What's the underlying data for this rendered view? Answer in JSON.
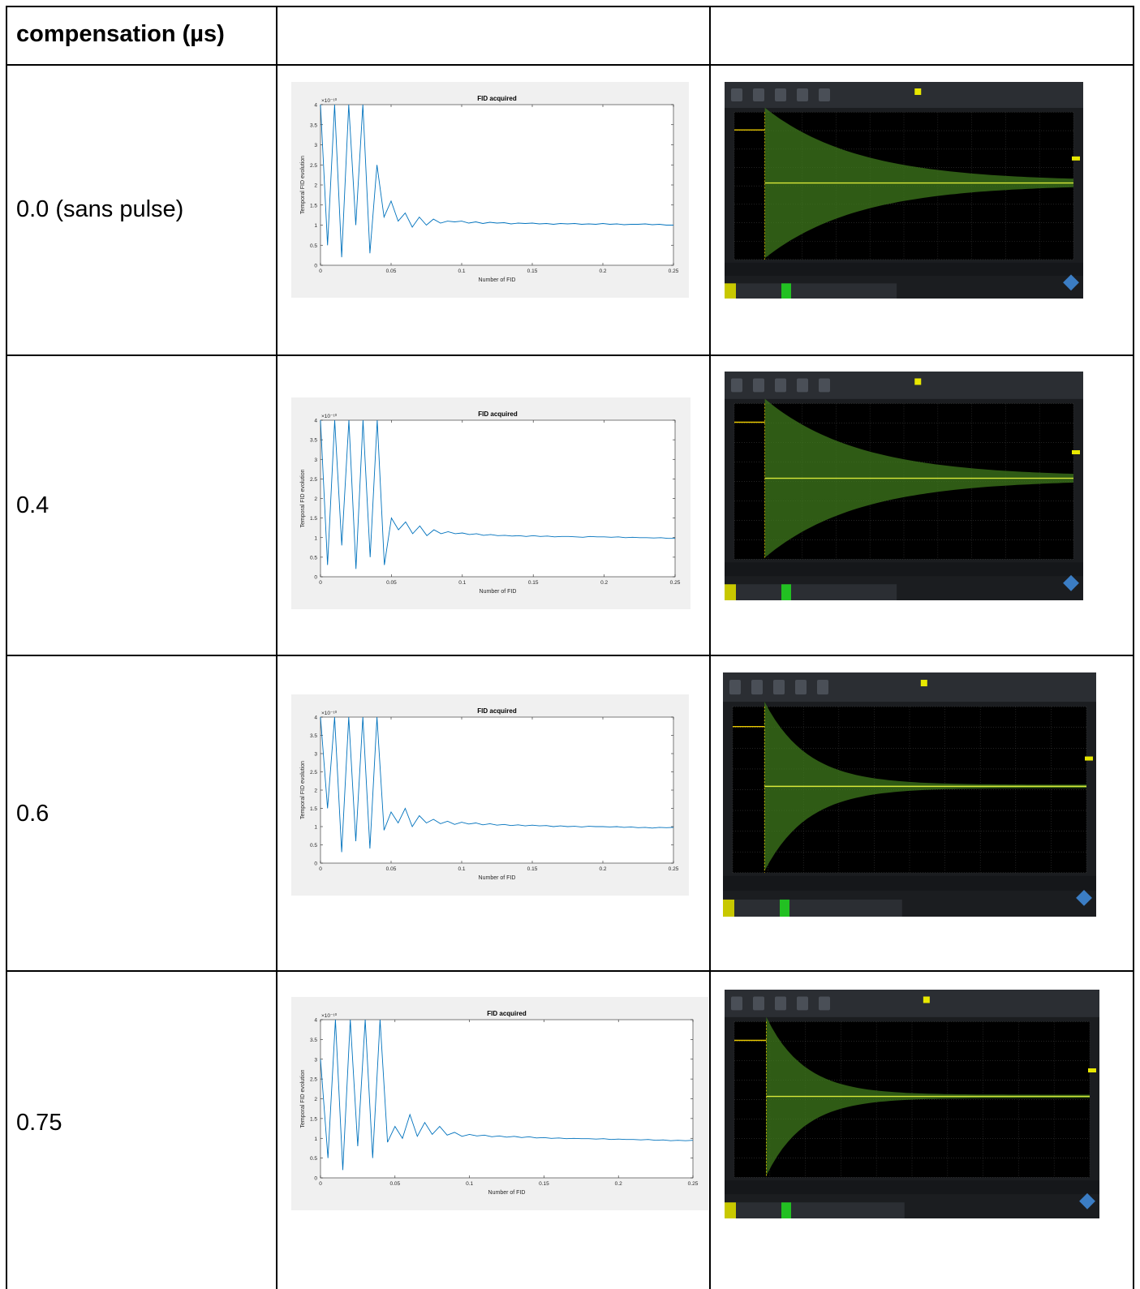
{
  "table": {
    "header_label": "compensation (µs)",
    "rows": [
      {
        "label": "0.0 (sans pulse)",
        "plot": {
          "type": "line",
          "title": "FID acquired",
          "xlabel": "Number of FID",
          "ylabel": "Temporal FID evolution",
          "y_exponent_label": "×10⁻¹⁰",
          "color": "#0072bd",
          "xlim": [
            0,
            0.25
          ],
          "ylim": [
            0,
            4
          ],
          "xticks": [
            0,
            0.05,
            0.1,
            0.15,
            0.2,
            0.25
          ],
          "yticks": [
            0,
            0.5,
            1,
            1.5,
            2,
            2.5,
            3,
            3.5,
            4
          ],
          "x": [
            0,
            0.005,
            0.01,
            0.015,
            0.02,
            0.025,
            0.03,
            0.035,
            0.04,
            0.045,
            0.05,
            0.055,
            0.06,
            0.065,
            0.07,
            0.075,
            0.08,
            0.085,
            0.09,
            0.095,
            0.1,
            0.105,
            0.11,
            0.115,
            0.12,
            0.125,
            0.13,
            0.135,
            0.14,
            0.145,
            0.15,
            0.155,
            0.16,
            0.165,
            0.17,
            0.175,
            0.18,
            0.185,
            0.19,
            0.195,
            0.2,
            0.205,
            0.21,
            0.215,
            0.22,
            0.225,
            0.23,
            0.235,
            0.24,
            0.245,
            0.25
          ],
          "values": [
            4,
            0.5,
            4,
            0.2,
            4,
            1.0,
            4,
            0.3,
            2.5,
            1.2,
            1.6,
            1.1,
            1.3,
            0.95,
            1.2,
            1.0,
            1.15,
            1.05,
            1.1,
            1.08,
            1.1,
            1.05,
            1.08,
            1.04,
            1.07,
            1.05,
            1.06,
            1.03,
            1.05,
            1.04,
            1.05,
            1.03,
            1.04,
            1.02,
            1.04,
            1.03,
            1.04,
            1.02,
            1.03,
            1.02,
            1.04,
            1.02,
            1.03,
            1.01,
            1.02,
            1.02,
            1.03,
            1.01,
            1.02,
            1.0,
            1.0
          ]
        }
      },
      {
        "label": "0.4",
        "plot": {
          "type": "line",
          "title": "FID acquired",
          "xlabel": "Number of FID",
          "ylabel": "Temporal FID evolution",
          "y_exponent_label": "×10⁻¹⁰",
          "color": "#0072bd",
          "xlim": [
            0,
            0.25
          ],
          "ylim": [
            0,
            4
          ],
          "xticks": [
            0,
            0.05,
            0.1,
            0.15,
            0.2,
            0.25
          ],
          "yticks": [
            0,
            0.5,
            1,
            1.5,
            2,
            2.5,
            3,
            3.5,
            4
          ],
          "x": [
            0,
            0.005,
            0.01,
            0.015,
            0.02,
            0.025,
            0.03,
            0.035,
            0.04,
            0.045,
            0.05,
            0.055,
            0.06,
            0.065,
            0.07,
            0.075,
            0.08,
            0.085,
            0.09,
            0.095,
            0.1,
            0.105,
            0.11,
            0.115,
            0.12,
            0.125,
            0.13,
            0.135,
            0.14,
            0.145,
            0.15,
            0.155,
            0.16,
            0.165,
            0.17,
            0.175,
            0.18,
            0.185,
            0.19,
            0.195,
            0.2,
            0.205,
            0.21,
            0.215,
            0.22,
            0.225,
            0.23,
            0.235,
            0.24,
            0.245,
            0.25
          ],
          "values": [
            4,
            0.3,
            4,
            0.8,
            4,
            0.2,
            4,
            0.5,
            4,
            0.3,
            1.5,
            1.2,
            1.4,
            1.1,
            1.3,
            1.05,
            1.2,
            1.1,
            1.15,
            1.1,
            1.12,
            1.08,
            1.1,
            1.06,
            1.08,
            1.05,
            1.06,
            1.04,
            1.05,
            1.03,
            1.05,
            1.03,
            1.04,
            1.02,
            1.03,
            1.03,
            1.02,
            1.01,
            1.03,
            1.02,
            1.02,
            1.01,
            1.02,
            1.0,
            1.01,
            1.0,
            1.0,
            0.99,
            1.0,
            0.98,
            0.98
          ]
        }
      },
      {
        "label": "0.6",
        "plot": {
          "type": "line",
          "title": "FID acquired",
          "xlabel": "Number of FID",
          "ylabel": "Temporal FID evolution",
          "y_exponent_label": "×10⁻¹⁰",
          "color": "#0072bd",
          "xlim": [
            0,
            0.25
          ],
          "ylim": [
            0,
            4
          ],
          "xticks": [
            0,
            0.05,
            0.1,
            0.15,
            0.2,
            0.25
          ],
          "yticks": [
            0,
            0.5,
            1,
            1.5,
            2,
            2.5,
            3,
            3.5,
            4
          ],
          "x": [
            0,
            0.005,
            0.01,
            0.015,
            0.02,
            0.025,
            0.03,
            0.035,
            0.04,
            0.045,
            0.05,
            0.055,
            0.06,
            0.065,
            0.07,
            0.075,
            0.08,
            0.085,
            0.09,
            0.095,
            0.1,
            0.105,
            0.11,
            0.115,
            0.12,
            0.125,
            0.13,
            0.135,
            0.14,
            0.145,
            0.15,
            0.155,
            0.16,
            0.165,
            0.17,
            0.175,
            0.18,
            0.185,
            0.19,
            0.195,
            0.2,
            0.205,
            0.21,
            0.215,
            0.22,
            0.225,
            0.23,
            0.235,
            0.24,
            0.245,
            0.25
          ],
          "values": [
            4,
            1.5,
            4,
            0.3,
            4,
            0.6,
            4,
            0.4,
            4,
            0.9,
            1.4,
            1.1,
            1.5,
            1.0,
            1.3,
            1.1,
            1.2,
            1.08,
            1.15,
            1.06,
            1.12,
            1.07,
            1.1,
            1.05,
            1.08,
            1.04,
            1.06,
            1.03,
            1.05,
            1.02,
            1.04,
            1.02,
            1.03,
            1.0,
            1.02,
            1.0,
            1.01,
            0.99,
            1.01,
            1.0,
            1.0,
            0.99,
            1.0,
            0.98,
            0.99,
            0.97,
            0.98,
            0.96,
            0.98,
            0.97,
            0.98
          ]
        }
      },
      {
        "label": "0.75",
        "plot": {
          "type": "line",
          "title": "FID acquired",
          "xlabel": "Number of FID",
          "ylabel": "Temporal FID evolution",
          "y_exponent_label": "×10⁻¹⁰",
          "color": "#0072bd",
          "xlim": [
            0,
            0.25
          ],
          "ylim": [
            0,
            4
          ],
          "xticks": [
            0,
            0.05,
            0.1,
            0.15,
            0.2,
            0.25
          ],
          "yticks": [
            0,
            0.5,
            1,
            1.5,
            2,
            2.5,
            3,
            3.5,
            4
          ],
          "x": [
            0,
            0.005,
            0.01,
            0.015,
            0.02,
            0.025,
            0.03,
            0.035,
            0.04,
            0.045,
            0.05,
            0.055,
            0.06,
            0.065,
            0.07,
            0.075,
            0.08,
            0.085,
            0.09,
            0.095,
            0.1,
            0.105,
            0.11,
            0.115,
            0.12,
            0.125,
            0.13,
            0.135,
            0.14,
            0.145,
            0.15,
            0.155,
            0.16,
            0.165,
            0.17,
            0.175,
            0.18,
            0.185,
            0.19,
            0.195,
            0.2,
            0.205,
            0.21,
            0.215,
            0.22,
            0.225,
            0.23,
            0.235,
            0.24,
            0.245,
            0.25
          ],
          "values": [
            3,
            0.5,
            4,
            0.2,
            4,
            0.8,
            4,
            0.5,
            4,
            0.9,
            1.3,
            1.0,
            1.6,
            1.05,
            1.4,
            1.1,
            1.3,
            1.08,
            1.15,
            1.05,
            1.1,
            1.06,
            1.08,
            1.04,
            1.06,
            1.03,
            1.05,
            1.02,
            1.04,
            1.01,
            1.02,
            1.0,
            1.01,
            0.99,
            1.0,
            0.99,
            0.99,
            0.98,
            0.99,
            0.97,
            0.98,
            0.97,
            0.97,
            0.96,
            0.97,
            0.95,
            0.96,
            0.94,
            0.95,
            0.94,
            0.95
          ]
        }
      }
    ]
  }
}
